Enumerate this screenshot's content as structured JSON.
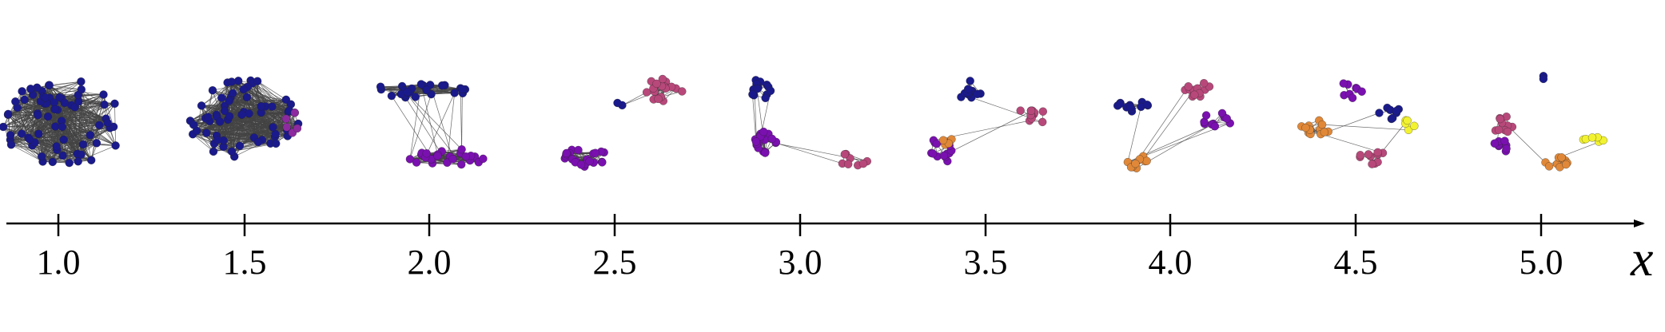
{
  "axis": {
    "label": "x",
    "ticks": [
      "1.0",
      "1.5",
      "2.0",
      "2.5",
      "3.0",
      "3.5",
      "4.0",
      "4.5",
      "5.0"
    ]
  },
  "palette": {
    "blue": "#1a1a8c",
    "purple": "#7a10b0",
    "violet": "#8e2aa0",
    "pink": "#b8487a",
    "orange": "#e08838",
    "yellow": "#f2f230",
    "edge": "#444444"
  },
  "networks": [
    {
      "x": "1.0",
      "clusters": [
        {
          "color": "blue",
          "nodes": 70
        }
      ]
    },
    {
      "x": "1.5",
      "clusters": [
        {
          "color": "blue",
          "nodes": 62
        },
        {
          "color": "violet",
          "nodes": 5
        }
      ]
    },
    {
      "x": "2.0",
      "clusters": [
        {
          "color": "blue",
          "nodes": 26
        },
        {
          "color": "purple",
          "nodes": 26
        }
      ]
    },
    {
      "x": "2.5",
      "clusters": [
        {
          "color": "pink",
          "nodes": 18
        },
        {
          "color": "purple",
          "nodes": 24
        },
        {
          "color": "blue",
          "nodes": 2
        }
      ]
    },
    {
      "x": "3.0",
      "clusters": [
        {
          "color": "blue",
          "nodes": 14
        },
        {
          "color": "purple",
          "nodes": 24
        },
        {
          "color": "pink",
          "nodes": 8
        }
      ]
    },
    {
      "x": "3.5",
      "clusters": [
        {
          "color": "blue",
          "nodes": 12
        },
        {
          "color": "pink",
          "nodes": 12
        },
        {
          "color": "purple",
          "nodes": 14
        },
        {
          "color": "orange",
          "nodes": 4
        }
      ]
    },
    {
      "x": "4.0",
      "clusters": [
        {
          "color": "blue",
          "nodes": 12
        },
        {
          "color": "pink",
          "nodes": 12
        },
        {
          "color": "purple",
          "nodes": 10
        },
        {
          "color": "orange",
          "nodes": 9
        }
      ]
    },
    {
      "x": "4.5",
      "clusters": [
        {
          "color": "orange",
          "nodes": 14
        },
        {
          "color": "purple",
          "nodes": 8
        },
        {
          "color": "blue",
          "nodes": 8
        },
        {
          "color": "yellow",
          "nodes": 5
        },
        {
          "color": "pink",
          "nodes": 10
        }
      ]
    },
    {
      "x": "5.0",
      "clusters": [
        {
          "color": "blue",
          "nodes": 2
        },
        {
          "color": "pink",
          "nodes": 10
        },
        {
          "color": "purple",
          "nodes": 10
        },
        {
          "color": "orange",
          "nodes": 10
        },
        {
          "color": "yellow",
          "nodes": 6
        }
      ]
    }
  ]
}
